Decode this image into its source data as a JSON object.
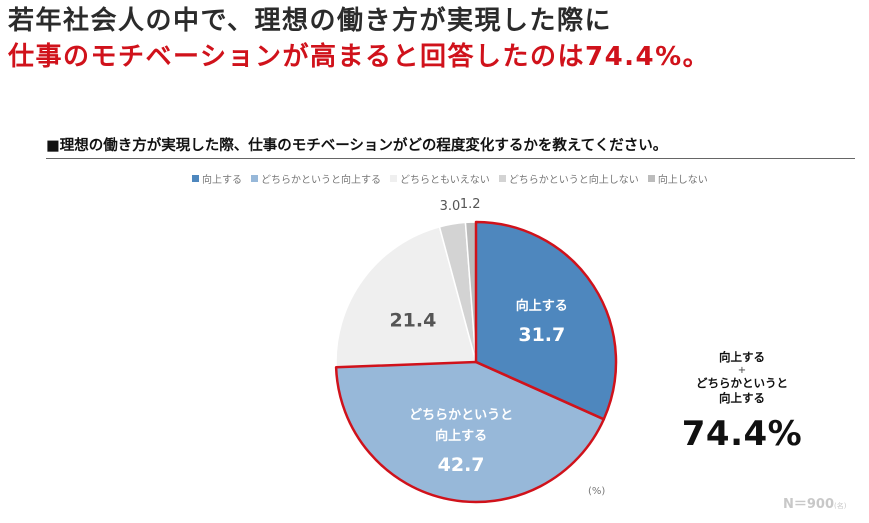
{
  "headline": {
    "line1": "若年社会人の中で、理想の働き方が実現した際に",
    "line2": "仕事のモチベーションが高まると回答したのは74.4%。"
  },
  "question": "■理想の働き方が実現した際、仕事のモチベーションがどの程度変化するかを教えてください。",
  "unit_label": "(%)",
  "combined": {
    "label_a": "向上する",
    "plus": "+",
    "label_b_1": "どちらかというと",
    "label_b_2": "向上する",
    "total": "74.4%"
  },
  "sample": {
    "n": "N＝900",
    "suffix": "(名)"
  },
  "chart_data": {
    "type": "pie",
    "unit": "%",
    "legend_position": "top",
    "start_angle_deg": 0,
    "direction": "clockwise",
    "slices": [
      {
        "label": "向上する",
        "value": 31.7,
        "color": "#4e87be",
        "inside_lines": [
          "向上する"
        ],
        "text_color": "#ffffff",
        "highlight": true
      },
      {
        "label": "どちらかというと向上する",
        "value": 42.7,
        "color": "#97b8d9",
        "inside_lines": [
          "どちらかというと",
          "向上する"
        ],
        "text_color": "#ffffff",
        "highlight": true
      },
      {
        "label": "どちらともいえない",
        "value": 21.4,
        "color": "#efefef",
        "inside_lines": [],
        "text_color": "#555555",
        "highlight": false
      },
      {
        "label": "どちらかというと向上しない",
        "value": 3.0,
        "color": "#d3d3d3",
        "inside_lines": [],
        "text_color": "#555555",
        "highlight": false
      },
      {
        "label": "向上しない",
        "value": 1.2,
        "color": "#bcbcbc",
        "inside_lines": [],
        "text_color": "#555555",
        "highlight": false
      }
    ],
    "highlight_color": "#d0121b"
  }
}
